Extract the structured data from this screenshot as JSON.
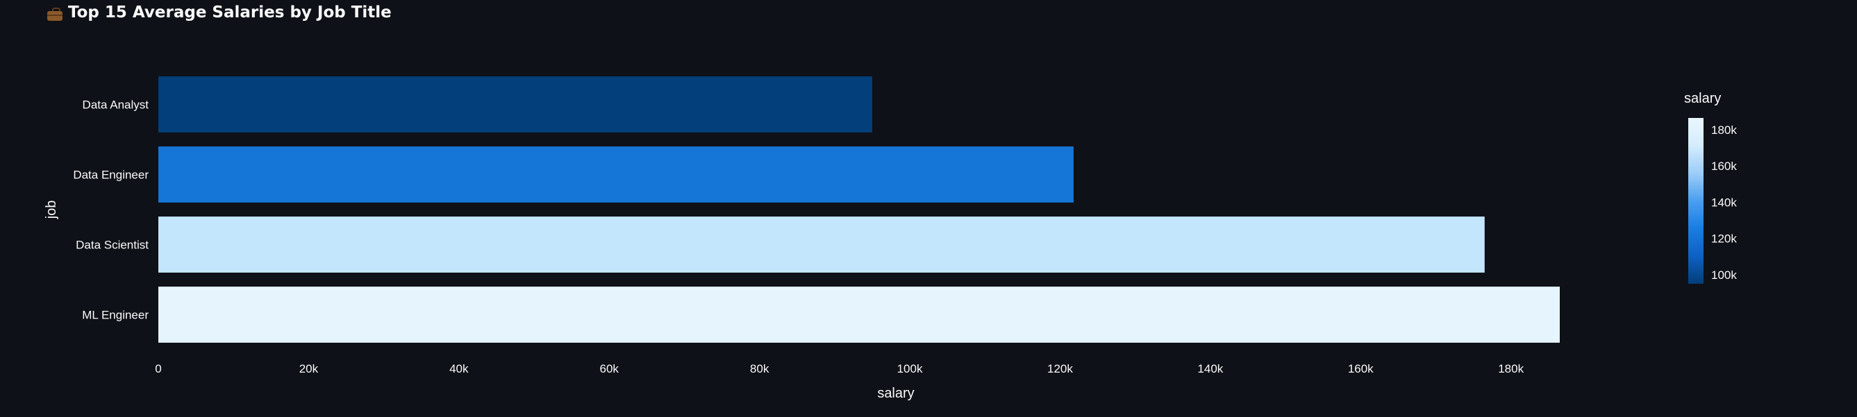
{
  "title": "Top 15 Average Salaries by Job Title",
  "title_icon": "briefcase-icon",
  "chart_data": {
    "type": "bar",
    "orientation": "horizontal",
    "xlabel": "salary",
    "ylabel": "job",
    "categories": [
      "Data Analyst",
      "Data Engineer",
      "Data Scientist",
      "ML Engineer"
    ],
    "values": [
      95000,
      121800,
      176500,
      186500
    ],
    "xlim": [
      0,
      186500
    ],
    "xticks": [
      0,
      20000,
      40000,
      60000,
      80000,
      100000,
      120000,
      140000,
      160000,
      180000
    ],
    "xtick_labels": [
      "0",
      "20k",
      "40k",
      "60k",
      "80k",
      "100k",
      "120k",
      "140k",
      "160k",
      "180k"
    ],
    "grid": false,
    "colorscale": {
      "title": "salary",
      "colors": [
        "#023d7a",
        "#0d62c2",
        "#1a7de0",
        "#4a9ff0",
        "#9ccdf8",
        "#d4ecfd",
        "#eaf6ff"
      ],
      "range": [
        95000,
        186500
      ],
      "ticks": [
        100000,
        120000,
        140000,
        160000,
        180000
      ],
      "tick_labels": [
        "100k",
        "120k",
        "140k",
        "160k",
        "180k"
      ]
    },
    "bar_colors": [
      "#023f7b",
      "#1576d8",
      "#c3e6fc",
      "#e6f4fe"
    ],
    "legend_position": "right"
  }
}
